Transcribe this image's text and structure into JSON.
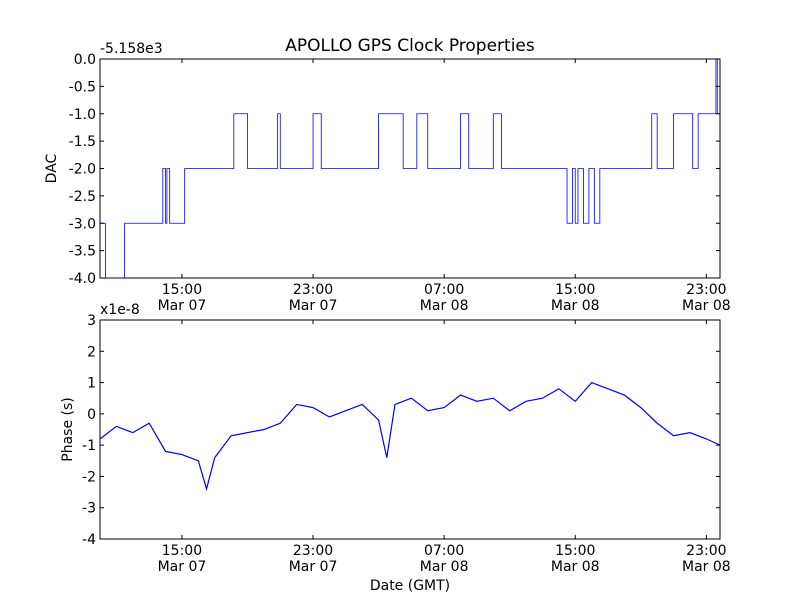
{
  "figure": {
    "title": "APOLLO GPS Clock Properties",
    "xlabel": "Date (GMT)",
    "line_color": "#0000ff"
  },
  "chart_data": [
    {
      "type": "line",
      "ylabel": "DAC",
      "offset_text": "-5.158e3",
      "x_domain": [
        "Mar 07 10:00",
        "Mar 08 23:50"
      ],
      "x_ticks": [
        {
          "time": "15:00",
          "date": "Mar 07"
        },
        {
          "time": "23:00",
          "date": "Mar 07"
        },
        {
          "time": "07:00",
          "date": "Mar 08"
        },
        {
          "time": "15:00",
          "date": "Mar 08"
        },
        {
          "time": "23:00",
          "date": "Mar 08"
        }
      ],
      "ylim": [
        -4.0,
        0.0
      ],
      "y_ticks": [
        "0.0",
        "-0.5",
        "-1.0",
        "-1.5",
        "-2.0",
        "-2.5",
        "-3.0",
        "-3.5",
        "-4.0"
      ],
      "series": [
        {
          "x": [
            "Mar 07 10:00",
            "Mar 07 10:10",
            "Mar 07 10:20",
            "Mar 07 10:30",
            "Mar 07 10:40",
            "Mar 07 11:30",
            "Mar 07 13:40",
            "Mar 07 13:50",
            "Mar 07 14:00",
            "Mar 07 14:05",
            "Mar 07 14:15",
            "Mar 07 14:20",
            "Mar 07 15:10",
            "Mar 07 17:30",
            "Mar 07 18:10",
            "Mar 07 19:00",
            "Mar 07 19:20",
            "Mar 07 20:50",
            "Mar 07 21:00",
            "Mar 07 23:00",
            "Mar 07 23:30",
            "Mar 08 02:00",
            "Mar 08 03:00",
            "Mar 08 04:30",
            "Mar 08 05:20",
            "Mar 08 05:40",
            "Mar 08 06:00",
            "Mar 08 08:00",
            "Mar 08 08:30",
            "Mar 08 10:00",
            "Mar 08 10:30",
            "Mar 08 12:00",
            "Mar 08 14:20",
            "Mar 08 14:30",
            "Mar 08 14:50",
            "Mar 08 15:00",
            "Mar 08 15:10",
            "Mar 08 15:30",
            "Mar 08 15:50",
            "Mar 08 16:10",
            "Mar 08 16:30",
            "Mar 08 17:30",
            "Mar 08 18:20",
            "Mar 08 19:40",
            "Mar 08 20:00",
            "Mar 08 21:00",
            "Mar 08 22:10",
            "Mar 08 22:30",
            "Mar 08 23:10",
            "Mar 08 23:20",
            "Mar 08 23:35",
            "Mar 08 23:40",
            "Mar 08 23:50"
          ],
          "y": [
            -3.0,
            -3.0,
            -4.0,
            -4.0,
            -4.0,
            -3.0,
            -3.0,
            -2.0,
            -3.0,
            -2.0,
            -3.0,
            -3.0,
            -2.0,
            -2.0,
            -1.0,
            -2.0,
            -2.0,
            -1.0,
            -2.0,
            -1.0,
            -2.0,
            -2.0,
            -1.0,
            -2.0,
            -1.0,
            -1.0,
            -2.0,
            -1.0,
            -2.0,
            -1.0,
            -2.0,
            -2.0,
            -2.0,
            -3.0,
            -2.0,
            -3.0,
            -2.0,
            -3.0,
            -2.0,
            -3.0,
            -2.0,
            -2.0,
            -2.0,
            -1.0,
            -2.0,
            -1.0,
            -2.0,
            -1.0,
            -1.0,
            -1.0,
            0.0,
            -1.0,
            -1.0
          ]
        }
      ]
    },
    {
      "type": "line",
      "ylabel": "Phase (s)",
      "offset_text": "x1e-8",
      "x_domain": [
        "Mar 07 10:00",
        "Mar 08 23:50"
      ],
      "x_ticks": [
        {
          "time": "15:00",
          "date": "Mar 07"
        },
        {
          "time": "23:00",
          "date": "Mar 07"
        },
        {
          "time": "07:00",
          "date": "Mar 08"
        },
        {
          "time": "15:00",
          "date": "Mar 08"
        },
        {
          "time": "23:00",
          "date": "Mar 08"
        }
      ],
      "ylim": [
        -4,
        3
      ],
      "y_ticks": [
        "3",
        "2",
        "1",
        "0",
        "-1",
        "-2",
        "-3",
        "-4"
      ],
      "series": [
        {
          "x": [
            "Mar 07 10:00",
            "Mar 07 11:00",
            "Mar 07 12:00",
            "Mar 07 13:00",
            "Mar 07 14:00",
            "Mar 07 15:00",
            "Mar 07 16:00",
            "Mar 07 16:30",
            "Mar 07 17:00",
            "Mar 07 18:00",
            "Mar 07 19:00",
            "Mar 07 20:00",
            "Mar 07 21:00",
            "Mar 07 22:00",
            "Mar 07 23:00",
            "Mar 08 00:00",
            "Mar 08 01:00",
            "Mar 08 02:00",
            "Mar 08 03:00",
            "Mar 08 03:30",
            "Mar 08 04:00",
            "Mar 08 05:00",
            "Mar 08 06:00",
            "Mar 08 07:00",
            "Mar 08 08:00",
            "Mar 08 09:00",
            "Mar 08 10:00",
            "Mar 08 11:00",
            "Mar 08 12:00",
            "Mar 08 13:00",
            "Mar 08 14:00",
            "Mar 08 15:00",
            "Mar 08 16:00",
            "Mar 08 17:00",
            "Mar 08 18:00",
            "Mar 08 19:00",
            "Mar 08 20:00",
            "Mar 08 21:00",
            "Mar 08 22:00",
            "Mar 08 23:00",
            "Mar 08 23:50"
          ],
          "y": [
            -0.8,
            -0.4,
            -0.6,
            -0.3,
            -1.2,
            -1.3,
            -1.5,
            -2.4,
            -1.4,
            -0.7,
            -0.6,
            -0.5,
            -0.3,
            0.3,
            0.2,
            -0.1,
            0.1,
            0.3,
            -0.2,
            -1.4,
            0.3,
            0.5,
            0.1,
            0.2,
            0.6,
            0.4,
            0.5,
            0.1,
            0.4,
            0.5,
            0.8,
            0.4,
            1.0,
            0.8,
            0.6,
            0.2,
            -0.3,
            -0.7,
            -0.6,
            -0.8,
            -1.0
          ]
        }
      ]
    }
  ]
}
